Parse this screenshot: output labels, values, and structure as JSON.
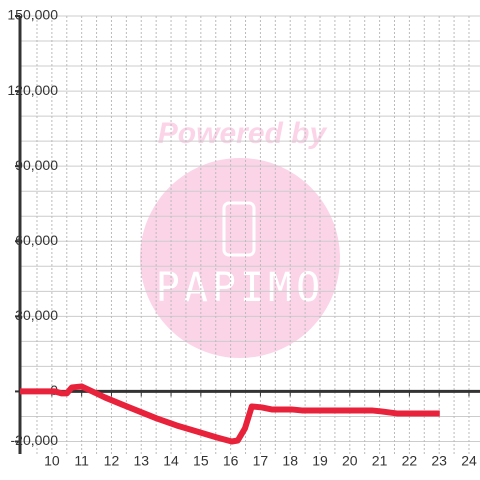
{
  "chart_data": {
    "type": "line",
    "x": [
      8.93,
      10.1,
      10.34,
      10.5,
      10.67,
      11.0,
      11.5,
      11.78,
      12.35,
      12.85,
      13.52,
      14.19,
      14.87,
      15.54,
      16.04,
      16.24,
      16.48,
      16.71,
      17.05,
      17.38,
      18.05,
      18.39,
      20.74,
      21.07,
      21.58,
      23.02
    ],
    "series": [
      {
        "color": "#e8223a",
        "values": [
          0,
          0,
          -800,
          -800,
          1600,
          2000,
          -800,
          -2400,
          -5200,
          -7600,
          -10800,
          -13600,
          -16000,
          -18400,
          -20000,
          -19600,
          -14800,
          -6000,
          -6400,
          -7200,
          -7200,
          -7600,
          -7600,
          -8000,
          -8800,
          -8800
        ]
      }
    ],
    "xlim": [
      8.93,
      24.37
    ],
    "xticks": [
      10,
      11,
      12,
      13,
      14,
      15,
      16,
      17,
      18,
      19,
      20,
      21,
      22,
      23,
      24
    ],
    "xgrid": [
      9.5,
      10,
      10.5,
      11,
      11.5,
      12,
      12.5,
      13,
      13.5,
      14,
      14.5,
      15,
      15.5,
      16,
      16.5,
      17,
      17.5,
      18,
      18.5,
      19,
      19.5,
      20,
      20.5,
      21,
      21.5,
      22,
      22.5,
      23,
      23.5,
      24
    ],
    "ylim": [
      -25000,
      150000
    ],
    "yticks": [
      {
        "value": -20000,
        "label": "-20,000"
      },
      0,
      {
        "value": 30000,
        "label": "30,000"
      },
      {
        "value": 60000,
        "label": "60,000"
      },
      {
        "value": 90000,
        "label": "90,000"
      },
      {
        "value": 120000,
        "label": "120,000"
      },
      {
        "value": 150000,
        "label": "150,000"
      }
    ],
    "ygrid": [
      -20000,
      -10000,
      10000,
      20000,
      30000,
      40000,
      50000,
      60000,
      70000,
      80000,
      90000,
      100000,
      110000,
      120000,
      130000,
      140000,
      150000
    ],
    "grid": true,
    "watermark": {
      "line1": "Powered by",
      "line2": "PAPIMO"
    }
  }
}
